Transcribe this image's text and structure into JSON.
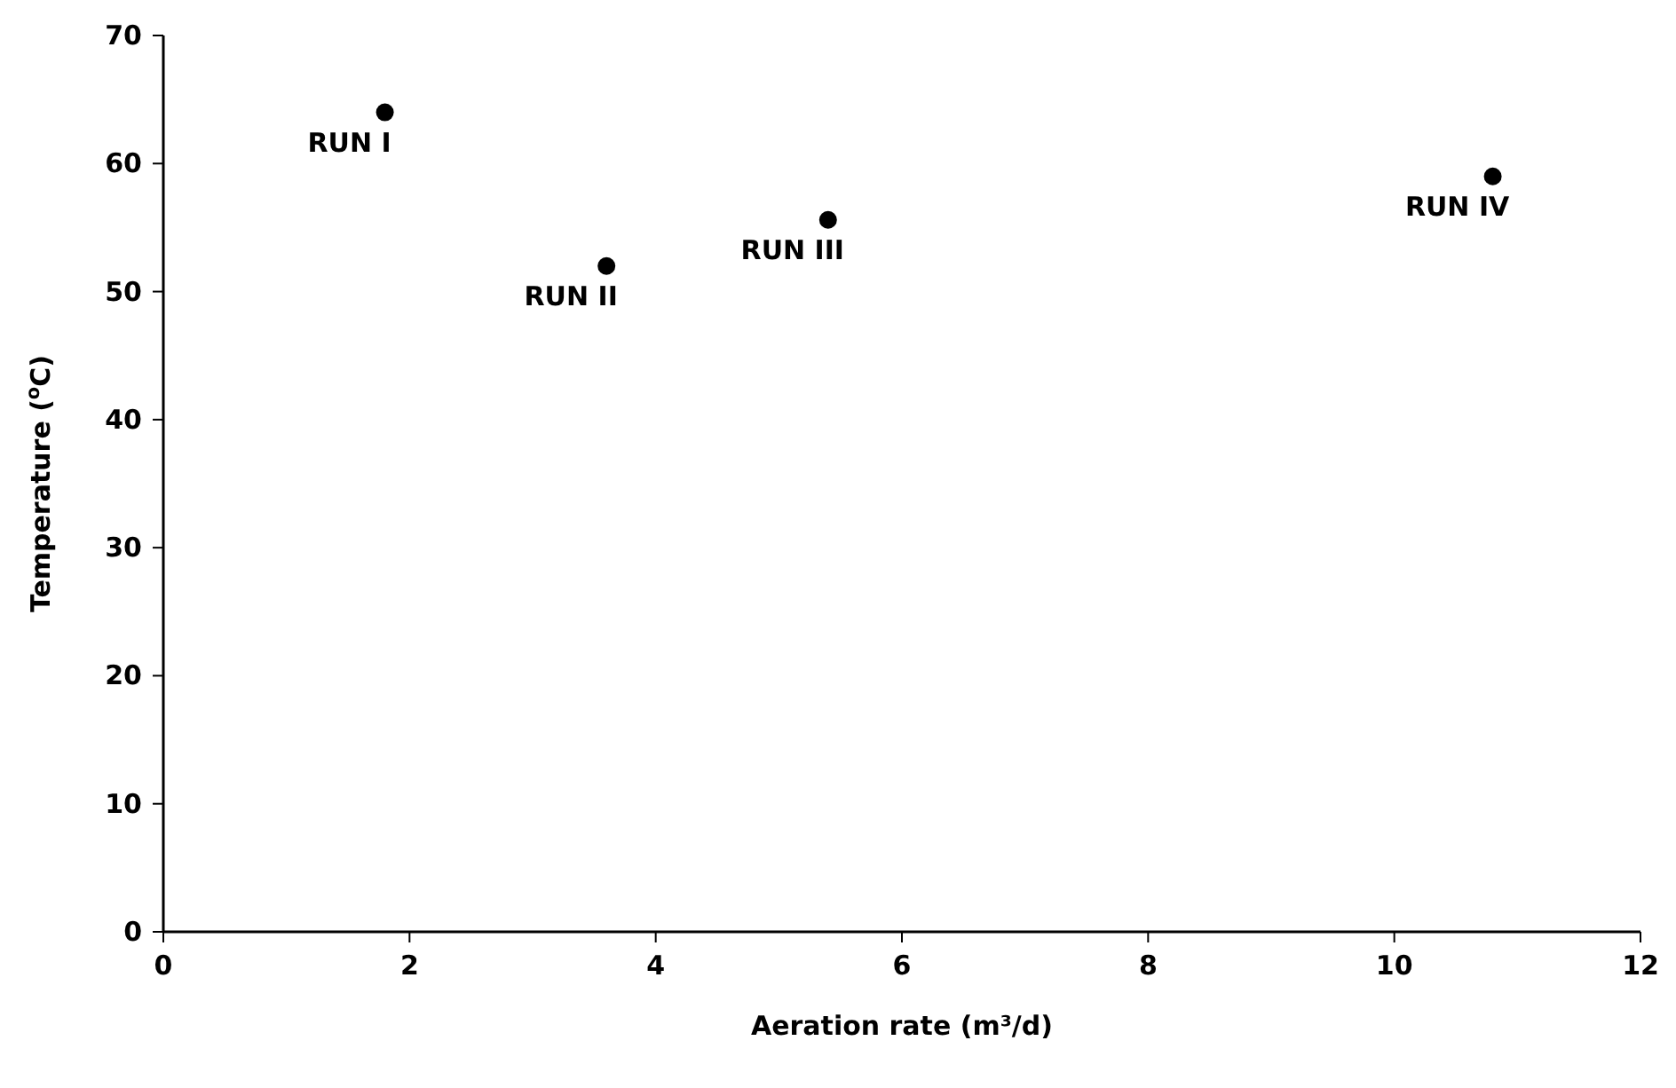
{
  "chart_data": {
    "type": "scatter",
    "xlabel": "Aeration rate (m³/d)",
    "ylabel": "Temperature ($^{o}$C)",
    "x": [
      1.8,
      3.6,
      5.4,
      10.8
    ],
    "values": [
      64,
      52,
      55.6,
      59
    ],
    "color": "#000000",
    "marker": "circle",
    "xlim": [
      0,
      12
    ],
    "xticks": [
      0,
      2,
      4,
      6,
      8,
      10,
      12
    ],
    "ylim": [
      0,
      70
    ],
    "yticks": [
      0,
      10,
      20,
      30,
      40,
      50,
      60,
      70
    ],
    "grid": false,
    "annotations": [
      {
        "text": "RUN I",
        "x": 1.8,
        "y": 64
      },
      {
        "text": "RUN II",
        "x": 3.6,
        "y": 52
      },
      {
        "text": "RUN III",
        "x": 5.4,
        "y": 55.6
      },
      {
        "text": "RUN IV",
        "x": 10.8,
        "y": 59
      }
    ]
  }
}
